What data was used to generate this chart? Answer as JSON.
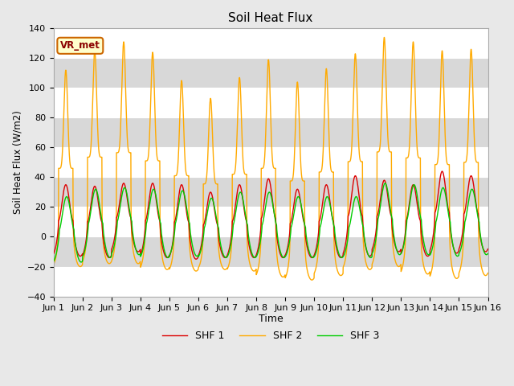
{
  "title": "Soil Heat Flux",
  "ylabel": "Soil Heat Flux (W/m2)",
  "xlabel": "Time",
  "ylim": [
    -40,
    140
  ],
  "yticks": [
    -40,
    -20,
    0,
    20,
    40,
    60,
    80,
    100,
    120,
    140
  ],
  "xtick_labels": [
    "Jun 1",
    "Jun 2",
    "Jun 3",
    "Jun 4",
    "Jun 5",
    "Jun 6",
    "Jun 7",
    "Jun 8",
    "Jun 9",
    "Jun 10",
    "Jun 11",
    "Jun 12",
    "Jun 13",
    "Jun 14",
    "Jun 15",
    "Jun 16"
  ],
  "n_days": 15,
  "color_shf1": "#dd0000",
  "color_shf2": "#ffaa00",
  "color_shf3": "#00cc00",
  "background_color": "#e8e8e8",
  "plot_bg_color": "#ffffff",
  "band_color": "#d8d8d8",
  "label_box_text": "VR_met",
  "label_box_facecolor": "#ffffcc",
  "label_box_edgecolor": "#cc6600",
  "legend_labels": [
    "SHF 1",
    "SHF 2",
    "SHF 3"
  ],
  "shf1_day_peaks": [
    35,
    34,
    36,
    36,
    35,
    30,
    35,
    39,
    32,
    35,
    41,
    38,
    35,
    44,
    41
  ],
  "shf2_day_peaks": [
    112,
    125,
    131,
    124,
    105,
    93,
    107,
    119,
    104,
    113,
    123,
    134,
    131,
    125,
    126
  ],
  "shf3_day_peaks": [
    27,
    32,
    33,
    32,
    31,
    26,
    30,
    30,
    27,
    27,
    27,
    36,
    35,
    33,
    32
  ],
  "shf1_night_troughs": [
    -13,
    -14,
    -10,
    -14,
    -15,
    -14,
    -14,
    -14,
    -14,
    -14,
    -13,
    -10,
    -13,
    -11,
    -10
  ],
  "shf2_night_troughs": [
    -20,
    -18,
    -18,
    -22,
    -23,
    -22,
    -23,
    -27,
    -29,
    -26,
    -22,
    -20,
    -25,
    -28,
    -26
  ],
  "shf3_night_troughs": [
    -17,
    -14,
    -12,
    -14,
    -13,
    -14,
    -14,
    -14,
    -14,
    -14,
    -14,
    -12,
    -12,
    -13,
    -12
  ]
}
